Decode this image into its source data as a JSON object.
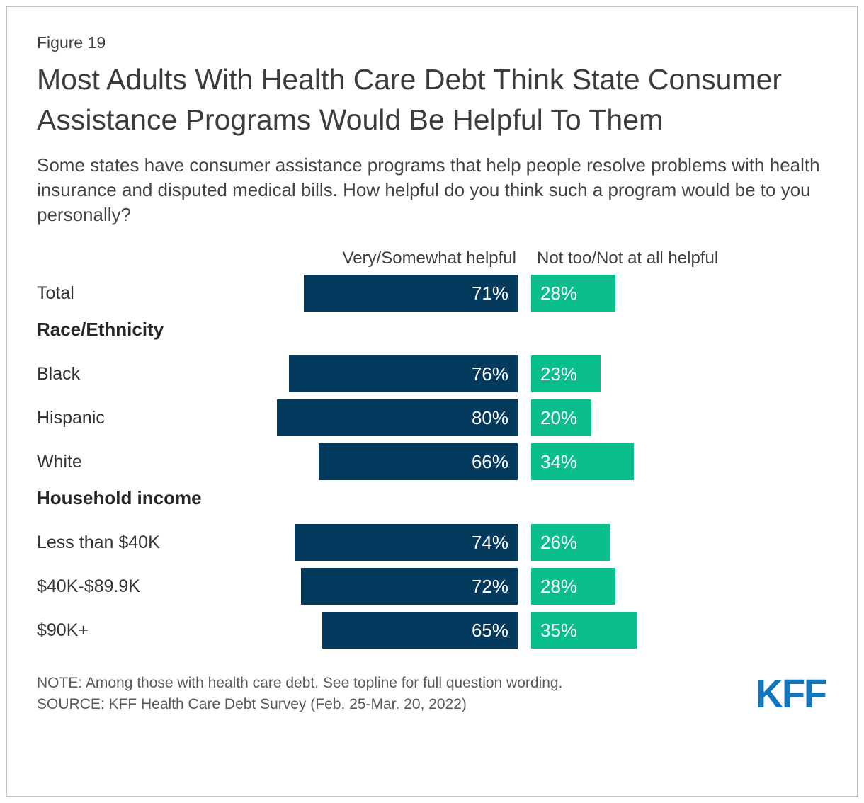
{
  "figure_label": "Figure 19",
  "title": "Most Adults With Health Care Debt Think State Consumer Assistance Programs Would Be Helpful To Them",
  "subtitle": "Some states have consumer assistance programs that help people resolve problems with health insurance and disputed medical bills. How helpful do you think such a program would be to you personally?",
  "chart_data": {
    "type": "bar",
    "orientation": "horizontal-paired",
    "unit": "%",
    "series_labels": [
      "Very/Somewhat helpful",
      "Not too/Not at all helpful"
    ],
    "colors": {
      "helpful": "#043A5E",
      "not_helpful": "#0ABE8C"
    },
    "value_label_color": "#ffffff",
    "rows": [
      {
        "kind": "bar",
        "label": "Total",
        "helpful": 71,
        "not_helpful": 28
      },
      {
        "kind": "section",
        "label": "Race/Ethnicity"
      },
      {
        "kind": "bar",
        "label": "Black",
        "helpful": 76,
        "not_helpful": 23
      },
      {
        "kind": "bar",
        "label": "Hispanic",
        "helpful": 80,
        "not_helpful": 20
      },
      {
        "kind": "bar",
        "label": "White",
        "helpful": 66,
        "not_helpful": 34
      },
      {
        "kind": "section",
        "label": "Household income"
      },
      {
        "kind": "bar",
        "label": "Less than $40K",
        "helpful": 74,
        "not_helpful": 26
      },
      {
        "kind": "bar",
        "label": "$40K-$89.9K",
        "helpful": 72,
        "not_helpful": 28
      },
      {
        "kind": "bar",
        "label": "$90K+",
        "helpful": 65,
        "not_helpful": 35
      }
    ]
  },
  "footer": {
    "note": "NOTE: Among those with health care debt. See topline for full question wording.",
    "source": "SOURCE: KFF Health Care Debt Survey (Feb. 25-Mar. 20, 2022)",
    "logo_text": "KFF",
    "logo_color": "#1276BC"
  }
}
